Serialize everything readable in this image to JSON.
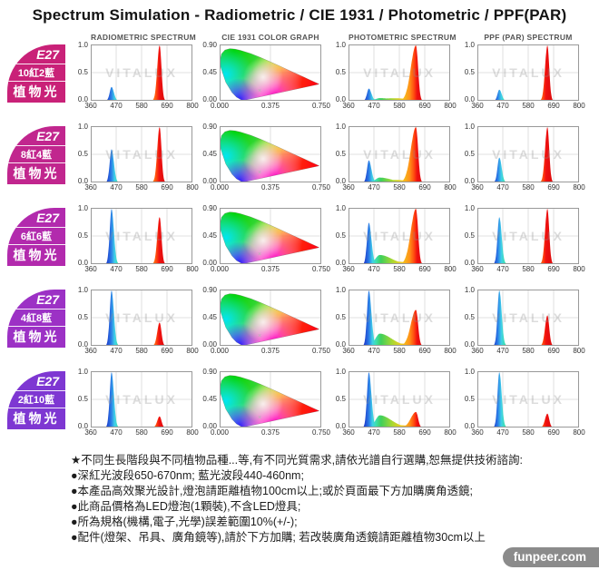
{
  "title": "Spectrum Simulation - Radiometric / CIE 1931 / Photometric / PPF(PAR)",
  "columns": [
    "RADIOMETRIC SPECTRUM",
    "CIE 1931 COLOR GRAPH",
    "PHOTOMETRIC SPECTRUM",
    "PPF (PAR) SPECTRUM"
  ],
  "watermark": "VITALUX",
  "source_badge": "funpeer.com",
  "footnotes": [
    "★不同生長階段與不同植物品種...等,有不同光質需求,請依光譜自行選購,恕無提供技術諮詢:",
    "●深紅光波段650-670nm; 藍光波段440-460nm;",
    "●本產品高效聚光設計,燈泡請距離植物100cm以上;或於頁面最下方加購廣角透鏡;",
    "●此商品價格為LED燈泡(1顆裝),不含LED燈具;",
    "●所為規格(機構,電子,光學)誤差範圍10%(+/-);",
    "●配件(燈架、吊具、廣角鏡等),請於下方加購; 若改裝廣角透鏡請距離植物30cm以上"
  ],
  "chart_data": {
    "type": "area",
    "layout": "5 rows x 4 columns (radiometric, CIE 1931, photometric, PPF spectra)",
    "spectrum_axis": {
      "x_ticks": [
        "360",
        "470",
        "580",
        "690",
        "800"
      ],
      "y_ticks": [
        "1.0",
        "0.5",
        "0.0"
      ],
      "x_range_nm": [
        360,
        800
      ],
      "y_range": [
        0,
        1
      ],
      "grid": "on"
    },
    "cie_axis": {
      "x_ticks": [
        "0.000",
        "0.375",
        "0.750"
      ],
      "y_ticks": [
        "0.90",
        "0.45",
        "0.00"
      ],
      "x_range": [
        0,
        0.75
      ],
      "y_range": [
        0,
        0.9
      ],
      "content": "CIE 1931 chromaticity horseshoe diagram"
    },
    "peak_wavelengths_nm": {
      "blue": "440-460",
      "deep_red": "650-670"
    },
    "rows": [
      {
        "badge": {
          "line1": "E27",
          "line2": "10紅2藍",
          "line3": "植物光",
          "color": "#c92178"
        },
        "radiometric": {
          "blue_peak": 0.25,
          "red_peak": 1.0
        },
        "photometric": {
          "blue_peak": 0.22,
          "red_peak": 1.0
        },
        "ppf": {
          "blue_peak": 0.2,
          "red_peak": 1.0
        }
      },
      {
        "badge": {
          "line1": "E27",
          "line2": "8紅4藍",
          "line3": "植物光",
          "color": "#c1268e"
        },
        "radiometric": {
          "blue_peak": 0.6,
          "red_peak": 1.0
        },
        "photometric": {
          "blue_peak": 0.4,
          "red_peak": 1.0
        },
        "ppf": {
          "blue_peak": 0.45,
          "red_peak": 1.0
        }
      },
      {
        "badge": {
          "line1": "E27",
          "line2": "6紅6藍",
          "line3": "植物光",
          "color": "#b22aad"
        },
        "radiometric": {
          "blue_peak": 1.0,
          "red_peak": 0.85
        },
        "photometric": {
          "blue_peak": 0.75,
          "red_peak": 1.0
        },
        "ppf": {
          "blue_peak": 0.85,
          "red_peak": 1.0
        }
      },
      {
        "badge": {
          "line1": "E27",
          "line2": "4紅8藍",
          "line3": "植物光",
          "color": "#9c31c5"
        },
        "radiometric": {
          "blue_peak": 1.0,
          "red_peak": 0.42
        },
        "photometric": {
          "blue_peak": 1.0,
          "red_peak": 0.65
        },
        "ppf": {
          "blue_peak": 1.0,
          "red_peak": 0.55
        }
      },
      {
        "badge": {
          "line1": "E27",
          "line2": "2紅10藍",
          "line3": "植物光",
          "color": "#7e37d2"
        },
        "radiometric": {
          "blue_peak": 1.0,
          "red_peak": 0.2
        },
        "photometric": {
          "blue_peak": 1.0,
          "red_peak": 0.28
        },
        "ppf": {
          "blue_peak": 1.0,
          "red_peak": 0.25
        }
      }
    ]
  }
}
